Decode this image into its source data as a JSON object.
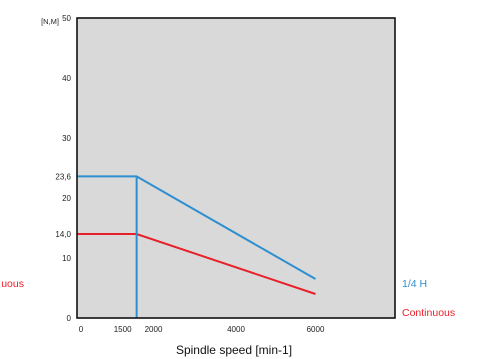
{
  "chart_data": {
    "type": "line",
    "title": "",
    "xlabel": "Spindle speed [min-1]",
    "ylabel": "[N,M]",
    "xlim": [
      0,
      8000
    ],
    "ylim": [
      0,
      50
    ],
    "x_ticks": [
      {
        "value": 0,
        "label": "0"
      },
      {
        "value": 1500,
        "label": "1500"
      },
      {
        "value": 2000,
        "label": "2000"
      },
      {
        "value": 4000,
        "label": "4000"
      },
      {
        "value": 6000,
        "label": "6000"
      }
    ],
    "y_ticks": [
      {
        "value": 0,
        "label": "0"
      },
      {
        "value": 10,
        "label": "10"
      },
      {
        "value": 14.0,
        "label": "14,0"
      },
      {
        "value": 20,
        "label": "20"
      },
      {
        "value": 23.6,
        "label": "23,6"
      },
      {
        "value": 30,
        "label": "30"
      },
      {
        "value": 40,
        "label": "40"
      },
      {
        "value": 50,
        "label": "50"
      }
    ],
    "grid": false,
    "legend": "right",
    "plot_background": "#d9d9d9",
    "series": [
      {
        "name": "1/4 H",
        "color": "#2e8fd0",
        "x": [
          0,
          1500,
          6000
        ],
        "y": [
          23.6,
          23.6,
          6.5
        ]
      },
      {
        "name": "Continuous",
        "color": "#e8202a",
        "x": [
          0,
          1500,
          6000
        ],
        "y": [
          14.0,
          14.0,
          4.0
        ]
      }
    ],
    "annotations": [
      {
        "type": "vertical-line",
        "x": 1500,
        "y_from": 0,
        "y_to": 23.6,
        "color": "#2e8fd0"
      }
    ],
    "clipped_left_text": "uous"
  }
}
